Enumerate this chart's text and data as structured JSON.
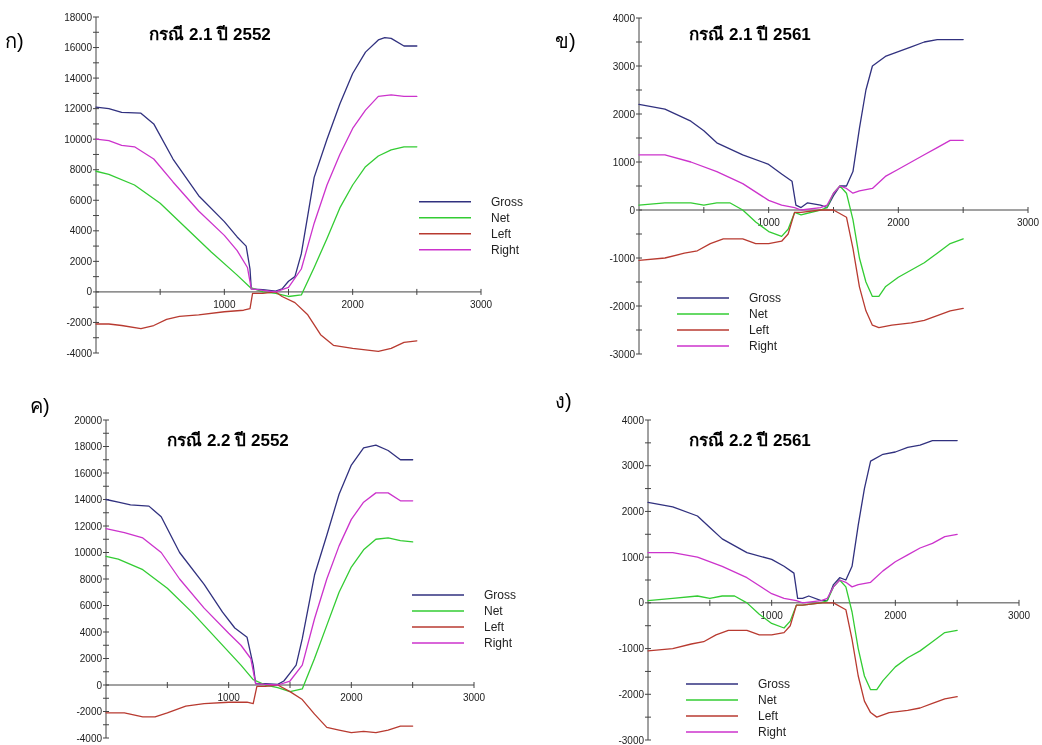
{
  "chart_data": [
    {
      "type": "line",
      "title": "กรณี 2.1 ปี 2552",
      "annotations": [
        "ก)"
      ],
      "legend": "right",
      "xlim": [
        0,
        3000
      ],
      "xticks": [
        {
          "value": 500,
          "label": null
        },
        1000,
        {
          "value": 1500,
          "label": null
        },
        2000,
        {
          "value": 2500,
          "label": null
        },
        3000
      ],
      "ylim": [
        -4000,
        18000
      ],
      "yticks": [
        -4000,
        {
          "value": -3000,
          "label": null
        },
        -2000,
        {
          "value": -1000,
          "label": null
        },
        0,
        {
          "value": 1000,
          "label": null
        },
        2000,
        {
          "value": 3000,
          "label": null
        },
        4000,
        {
          "value": 5000,
          "label": null
        },
        6000,
        {
          "value": 7000,
          "label": null
        },
        8000,
        {
          "value": 9000,
          "label": null
        },
        10000,
        {
          "value": 11000,
          "label": null
        },
        12000,
        {
          "value": 13000,
          "label": null
        },
        14000,
        {
          "value": 15000,
          "label": null
        },
        16000,
        {
          "value": 17000,
          "label": null
        },
        18000
      ],
      "series": [
        {
          "name": "Gross",
          "color": "#31317f",
          "x": [
            0,
            100,
            200,
            350,
            450,
            600,
            800,
            1000,
            1100,
            1170,
            1200,
            1210,
            1300,
            1400,
            1450,
            1500,
            1550,
            1600,
            1650,
            1700,
            1800,
            1900,
            2000,
            2100,
            2200,
            2250,
            2300,
            2400,
            2500
          ],
          "values": [
            12100,
            12000,
            11750,
            11700,
            11000,
            8700,
            6300,
            4600,
            3600,
            3000,
            1500,
            200,
            150,
            50,
            200,
            700,
            1000,
            2500,
            5000,
            7500,
            10000,
            12300,
            14300,
            15700,
            16500,
            16650,
            16600,
            16100,
            16100
          ]
        },
        {
          "name": "Net",
          "color": "#33cc33",
          "x": [
            0,
            100,
            300,
            500,
            700,
            900,
            1100,
            1200,
            1300,
            1400,
            1500,
            1600,
            1700,
            1800,
            1900,
            2000,
            2100,
            2200,
            2300,
            2400,
            2500
          ],
          "values": [
            7900,
            7700,
            7000,
            5800,
            4200,
            2600,
            1100,
            300,
            0,
            -100,
            -300,
            -200,
            1600,
            3500,
            5500,
            7000,
            8200,
            8900,
            9300,
            9500,
            9500
          ]
        },
        {
          "name": "Left",
          "color": "#b83a30",
          "x": [
            0,
            100,
            200,
            350,
            450,
            550,
            650,
            800,
            1000,
            1150,
            1200,
            1220,
            1300,
            1400,
            1450,
            1550,
            1650,
            1750,
            1850,
            2000,
            2100,
            2200,
            2300,
            2400,
            2500
          ],
          "values": [
            -2100,
            -2100,
            -2200,
            -2400,
            -2200,
            -1800,
            -1600,
            -1500,
            -1300,
            -1200,
            -1100,
            -100,
            -100,
            0,
            -300,
            -700,
            -1500,
            -2800,
            -3500,
            -3700,
            -3800,
            -3900,
            -3700,
            -3300,
            -3200
          ]
        },
        {
          "name": "Right",
          "color": "#cc33cc",
          "x": [
            0,
            100,
            200,
            300,
            450,
            600,
            800,
            1000,
            1100,
            1180,
            1210,
            1300,
            1400,
            1500,
            1600,
            1700,
            1800,
            1900,
            2000,
            2100,
            2200,
            2300,
            2400,
            2500
          ],
          "values": [
            10000,
            9900,
            9600,
            9500,
            8700,
            7200,
            5300,
            3700,
            2700,
            1600,
            200,
            100,
            0,
            300,
            1500,
            4500,
            7000,
            9000,
            10700,
            11900,
            12800,
            12900,
            12800,
            12800
          ]
        }
      ]
    },
    {
      "type": "line",
      "title": "กรณี 2.1 ปี 2561",
      "annotations": [
        "ข)"
      ],
      "legend": "bottom left",
      "xlim": [
        0,
        3000
      ],
      "xticks": [
        {
          "value": 500,
          "label": null
        },
        1000,
        {
          "value": 1500,
          "label": null
        },
        2000,
        {
          "value": 2500,
          "label": null
        },
        3000
      ],
      "ylim": [
        -3000,
        4000
      ],
      "yticks": [
        -3000,
        {
          "value": -2500,
          "label": null
        },
        -2000,
        {
          "value": -1500,
          "label": null
        },
        -1000,
        {
          "value": -500,
          "label": null
        },
        0,
        {
          "value": 500,
          "label": null
        },
        1000,
        {
          "value": 1500,
          "label": null
        },
        2000,
        {
          "value": 2500,
          "label": null
        },
        3000,
        {
          "value": 3500,
          "label": null
        },
        4000
      ],
      "series": [
        {
          "name": "Gross",
          "color": "#31317f",
          "x": [
            0,
            200,
            400,
            500,
            600,
            800,
            1000,
            1100,
            1180,
            1210,
            1250,
            1300,
            1400,
            1450,
            1500,
            1550,
            1600,
            1650,
            1700,
            1750,
            1800,
            1900,
            2000,
            2100,
            2200,
            2300,
            2400,
            2500
          ],
          "values": [
            2200,
            2100,
            1850,
            1650,
            1400,
            1150,
            950,
            750,
            600,
            100,
            50,
            150,
            100,
            50,
            300,
            500,
            500,
            800,
            1700,
            2500,
            3000,
            3200,
            3300,
            3400,
            3500,
            3550,
            3550,
            3550
          ]
        },
        {
          "name": "Net",
          "color": "#33cc33",
          "x": [
            0,
            200,
            400,
            500,
            600,
            700,
            800,
            900,
            1000,
            1100,
            1150,
            1200,
            1250,
            1400,
            1450,
            1500,
            1550,
            1600,
            1650,
            1700,
            1750,
            1800,
            1850,
            1900,
            2000,
            2100,
            2200,
            2300,
            2400,
            2500
          ],
          "values": [
            100,
            150,
            150,
            100,
            150,
            150,
            0,
            -250,
            -450,
            -550,
            -400,
            -50,
            -100,
            0,
            50,
            350,
            500,
            350,
            -200,
            -1000,
            -1500,
            -1800,
            -1800,
            -1600,
            -1400,
            -1250,
            -1100,
            -900,
            -700,
            -600
          ]
        },
        {
          "name": "Left",
          "color": "#b83a30",
          "x": [
            0,
            200,
            350,
            450,
            550,
            650,
            800,
            900,
            1000,
            1100,
            1150,
            1200,
            1250,
            1400,
            1500,
            1600,
            1650,
            1700,
            1750,
            1800,
            1850,
            1950,
            2100,
            2200,
            2300,
            2400,
            2500
          ],
          "values": [
            -1050,
            -1000,
            -900,
            -850,
            -700,
            -600,
            -600,
            -700,
            -700,
            -650,
            -500,
            -50,
            -50,
            0,
            0,
            -150,
            -800,
            -1600,
            -2100,
            -2400,
            -2450,
            -2400,
            -2350,
            -2300,
            -2200,
            -2100,
            -2050
          ]
        },
        {
          "name": "Right",
          "color": "#cc33cc",
          "x": [
            0,
            200,
            400,
            600,
            800,
            1000,
            1100,
            1200,
            1250,
            1400,
            1450,
            1500,
            1550,
            1600,
            1650,
            1700,
            1800,
            1900,
            2000,
            2100,
            2200,
            2300,
            2400,
            2500
          ],
          "values": [
            1150,
            1150,
            1000,
            800,
            550,
            200,
            100,
            50,
            0,
            50,
            100,
            350,
            500,
            450,
            350,
            400,
            450,
            700,
            850,
            1000,
            1150,
            1300,
            1450,
            1450
          ]
        }
      ]
    },
    {
      "type": "line",
      "title": "กรณี 2.2 ปี 2552",
      "annotations": [
        "ค)"
      ],
      "legend": "right",
      "xlim": [
        0,
        3000
      ],
      "xticks": [
        {
          "value": 500,
          "label": null
        },
        1000,
        {
          "value": 1500,
          "label": null
        },
        2000,
        {
          "value": 2500,
          "label": null
        },
        3000
      ],
      "ylim": [
        -4000,
        20000
      ],
      "yticks": [
        -4000,
        {
          "value": -3000,
          "label": null
        },
        -2000,
        {
          "value": -1000,
          "label": null
        },
        0,
        {
          "value": 1000,
          "label": null
        },
        2000,
        {
          "value": 3000,
          "label": null
        },
        4000,
        {
          "value": 5000,
          "label": null
        },
        6000,
        {
          "value": 7000,
          "label": null
        },
        8000,
        {
          "value": 9000,
          "label": null
        },
        10000,
        {
          "value": 11000,
          "label": null
        },
        12000,
        {
          "value": 13000,
          "label": null
        },
        14000,
        {
          "value": 15000,
          "label": null
        },
        16000,
        {
          "value": 17000,
          "label": null
        },
        18000,
        {
          "value": 19000,
          "label": null
        },
        20000
      ],
      "series": [
        {
          "name": "Gross",
          "color": "#31317f",
          "x": [
            0,
            100,
            200,
            350,
            450,
            600,
            800,
            950,
            1050,
            1150,
            1200,
            1220,
            1300,
            1400,
            1450,
            1500,
            1550,
            1600,
            1700,
            1800,
            1900,
            2000,
            2100,
            2200,
            2300,
            2400,
            2500
          ],
          "values": [
            14000,
            13800,
            13600,
            13500,
            12700,
            10000,
            7600,
            5500,
            4300,
            3600,
            1500,
            100,
            100,
            50,
            300,
            900,
            1500,
            3500,
            8300,
            11300,
            14400,
            16600,
            17900,
            18100,
            17700,
            17000,
            17000
          ]
        },
        {
          "name": "Net",
          "color": "#33cc33",
          "x": [
            0,
            100,
            300,
            500,
            700,
            900,
            1100,
            1200,
            1300,
            1400,
            1500,
            1600,
            1700,
            1800,
            1900,
            2000,
            2100,
            2200,
            2300,
            2400,
            2500
          ],
          "values": [
            9700,
            9500,
            8700,
            7300,
            5500,
            3500,
            1500,
            400,
            0,
            -200,
            -500,
            -300,
            2000,
            4500,
            7000,
            8900,
            10200,
            11000,
            11100,
            10900,
            10800
          ]
        },
        {
          "name": "Left",
          "color": "#b83a30",
          "x": [
            0,
            150,
            300,
            400,
            500,
            650,
            800,
            1000,
            1150,
            1200,
            1230,
            1300,
            1400,
            1500,
            1600,
            1700,
            1800,
            1900,
            2000,
            2100,
            2200,
            2300,
            2400,
            2500
          ],
          "values": [
            -2100,
            -2100,
            -2400,
            -2400,
            -2100,
            -1600,
            -1400,
            -1300,
            -1300,
            -1400,
            -100,
            -100,
            0,
            -500,
            -1100,
            -2200,
            -3200,
            -3400,
            -3600,
            -3500,
            -3600,
            -3400,
            -3100,
            -3100
          ]
        },
        {
          "name": "Right",
          "color": "#cc33cc",
          "x": [
            0,
            150,
            300,
            450,
            600,
            800,
            1000,
            1100,
            1180,
            1220,
            1300,
            1400,
            1500,
            1600,
            1700,
            1800,
            1900,
            2000,
            2100,
            2200,
            2300,
            2400,
            2500
          ],
          "values": [
            11800,
            11500,
            11100,
            10000,
            8000,
            5800,
            3900,
            3000,
            2000,
            100,
            50,
            0,
            300,
            1500,
            5000,
            8000,
            10500,
            12500,
            13800,
            14500,
            14500,
            13900,
            13900
          ]
        }
      ]
    },
    {
      "type": "line",
      "title": "กรณี 2.2 ปี 2561",
      "annotations": [
        "ง)"
      ],
      "legend": "bottom left",
      "xlim": [
        0,
        3000
      ],
      "xticks": [
        {
          "value": 500,
          "label": null
        },
        1000,
        {
          "value": 1500,
          "label": null
        },
        2000,
        {
          "value": 2500,
          "label": null
        },
        3000
      ],
      "ylim": [
        -3000,
        4000
      ],
      "yticks": [
        -3000,
        {
          "value": -2500,
          "label": null
        },
        -2000,
        {
          "value": -1500,
          "label": null
        },
        -1000,
        {
          "value": -500,
          "label": null
        },
        0,
        {
          "value": 500,
          "label": null
        },
        1000,
        {
          "value": 1500,
          "label": null
        },
        2000,
        {
          "value": 2500,
          "label": null
        },
        3000,
        {
          "value": 3500,
          "label": null
        },
        4000
      ],
      "series": [
        {
          "name": "Gross",
          "color": "#31317f",
          "x": [
            0,
            200,
            400,
            500,
            600,
            800,
            1000,
            1100,
            1180,
            1210,
            1250,
            1300,
            1400,
            1450,
            1500,
            1550,
            1600,
            1650,
            1700,
            1750,
            1800,
            1900,
            2000,
            2100,
            2200,
            2300,
            2400,
            2500
          ],
          "values": [
            2200,
            2100,
            1900,
            1650,
            1400,
            1100,
            950,
            800,
            650,
            100,
            100,
            150,
            50,
            50,
            400,
            550,
            500,
            800,
            1700,
            2500,
            3100,
            3250,
            3300,
            3400,
            3450,
            3550,
            3550,
            3550
          ]
        },
        {
          "name": "Net",
          "color": "#33cc33",
          "x": [
            0,
            200,
            400,
            500,
            600,
            700,
            800,
            900,
            1000,
            1100,
            1150,
            1200,
            1250,
            1400,
            1450,
            1500,
            1550,
            1600,
            1650,
            1700,
            1750,
            1800,
            1850,
            1900,
            2000,
            2100,
            2200,
            2300,
            2400,
            2500
          ],
          "values": [
            50,
            100,
            150,
            100,
            150,
            150,
            0,
            -250,
            -450,
            -550,
            -400,
            -50,
            -50,
            0,
            50,
            350,
            500,
            350,
            -200,
            -1000,
            -1600,
            -1900,
            -1900,
            -1700,
            -1400,
            -1200,
            -1050,
            -850,
            -650,
            -600
          ]
        },
        {
          "name": "Left",
          "color": "#b83a30",
          "x": [
            0,
            200,
            350,
            450,
            550,
            650,
            800,
            900,
            1000,
            1100,
            1150,
            1200,
            1250,
            1400,
            1500,
            1600,
            1650,
            1700,
            1750,
            1800,
            1850,
            1950,
            2100,
            2200,
            2300,
            2400,
            2500
          ],
          "values": [
            -1050,
            -1000,
            -900,
            -850,
            -700,
            -600,
            -600,
            -700,
            -700,
            -650,
            -500,
            -50,
            -50,
            0,
            0,
            -150,
            -800,
            -1600,
            -2150,
            -2400,
            -2500,
            -2400,
            -2350,
            -2300,
            -2200,
            -2100,
            -2050
          ]
        },
        {
          "name": "Right",
          "color": "#cc33cc",
          "x": [
            0,
            200,
            400,
            600,
            800,
            1000,
            1100,
            1200,
            1250,
            1400,
            1450,
            1500,
            1550,
            1600,
            1650,
            1700,
            1800,
            1900,
            2000,
            2100,
            2200,
            2300,
            2400,
            2500
          ],
          "values": [
            1100,
            1100,
            1000,
            800,
            550,
            200,
            100,
            50,
            0,
            50,
            100,
            350,
            500,
            450,
            350,
            400,
            450,
            700,
            900,
            1050,
            1200,
            1300,
            1450,
            1500
          ]
        }
      ]
    }
  ]
}
